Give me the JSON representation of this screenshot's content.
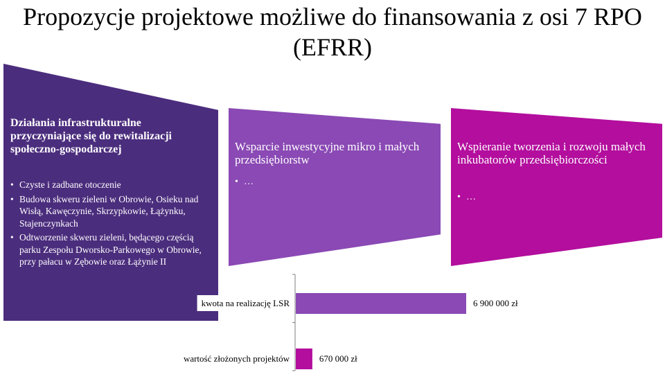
{
  "slide": {
    "title_line1": "Propozycje projektowe możliwe do finansowania z osi 7 RPO",
    "title_line2": "(EFRR)"
  },
  "panels": [
    {
      "heading": "Działania infrastrukturalne przyczyniające się do rewitalizacji społeczno-gospodarczej",
      "bullets": [
        "Czyste i zadbane otoczenie",
        "Budowa skweru zieleni w Obrowie, Osieku nad Wisłą, Kawęczynie, Skrzypkowie, Łążynku, Stajenczynkach",
        "Odtworzenie skweru zieleni, będącego częścią parku Zespołu Dworsko-Parkowego w Obrowie, przy pałacu w Zębowie oraz Łążynie II"
      ]
    },
    {
      "heading": "Wsparcie inwestycyjne mikro i małych przedsiębiorstw",
      "bullets": [
        "…"
      ]
    },
    {
      "heading": "Wspieranie tworzenia i rozwoju małych inkubatorów przedsiębiorczości",
      "bullets": [
        "…"
      ]
    }
  ],
  "colors": {
    "panel_1": "#4b2d7d",
    "panel_2": "#8a49b4",
    "panel_3": "#b30e9d",
    "bar_lsr": "#8a49b4",
    "bar_projects": "#b30e9d"
  },
  "chart_data": {
    "type": "bar",
    "orientation": "horizontal",
    "categories": [
      "kwota na realizację LSR",
      "wartość złożonych projektów"
    ],
    "values": [
      6900000,
      670000
    ],
    "data_labels": [
      "6 900 000 zł",
      "670 000 zł"
    ],
    "title": "",
    "xlabel": "",
    "ylabel": ""
  }
}
